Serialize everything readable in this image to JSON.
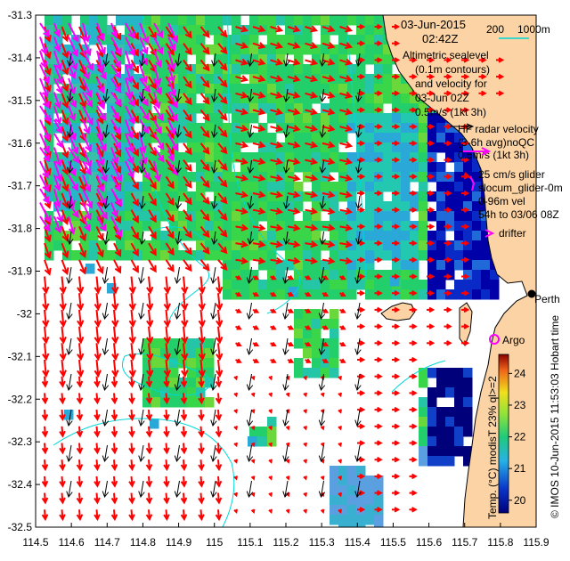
{
  "title": {
    "date": "03-Jun-2015",
    "time": "02:42Z"
  },
  "isobath": {
    "label_a": "200",
    "label_b": "1000m"
  },
  "legend": {
    "altimetric": [
      "Altimetric sealevel",
      "(0.1m contours)",
      "and velocity for",
      "03-Jun 02Z"
    ],
    "altimetric_scale": "0.5m/s (1kt 3h)",
    "hf_radar": [
      "HF radar velocity",
      "(3-6h avg)noQC"
    ],
    "hf_radar_scale": "0.5m/s (1kt 3h)",
    "glider": [
      "25 cm/s glider",
      "slocum_glider-0m",
      "0-96m vel",
      "54h to 03/06 08Z"
    ],
    "drifter": "drifter",
    "argo": "Argo",
    "perth": "Perth"
  },
  "colorbar": {
    "label": "Temp. (°C) modisT 23% ql>=2",
    "ticks": [
      "20",
      "21",
      "22",
      "23",
      "24"
    ]
  },
  "side_credit": "© IMOS 10-Jun-2015 11:53:03 Hobart time",
  "axes": {
    "x_ticks": [
      "114.5",
      "114.6",
      "114.7",
      "114.8",
      "114.9",
      "115",
      "115.1",
      "115.2",
      "115.3",
      "115.4",
      "115.5",
      "115.6",
      "115.7",
      "115.8",
      "115.9"
    ],
    "y_ticks": [
      "-31.3",
      "-31.4",
      "-31.5",
      "-31.6",
      "-31.7",
      "-31.8",
      "-31.9",
      "-32",
      "-32.1",
      "-32.2",
      "-32.3",
      "-32.4",
      "-32.5"
    ]
  },
  "colors": {
    "land": "#fbd3a4",
    "hf_arrow": "#ff00ff",
    "model_arrow": "#ff0000",
    "alt_arrow": "#000000",
    "contour": "#00d8d8"
  }
}
